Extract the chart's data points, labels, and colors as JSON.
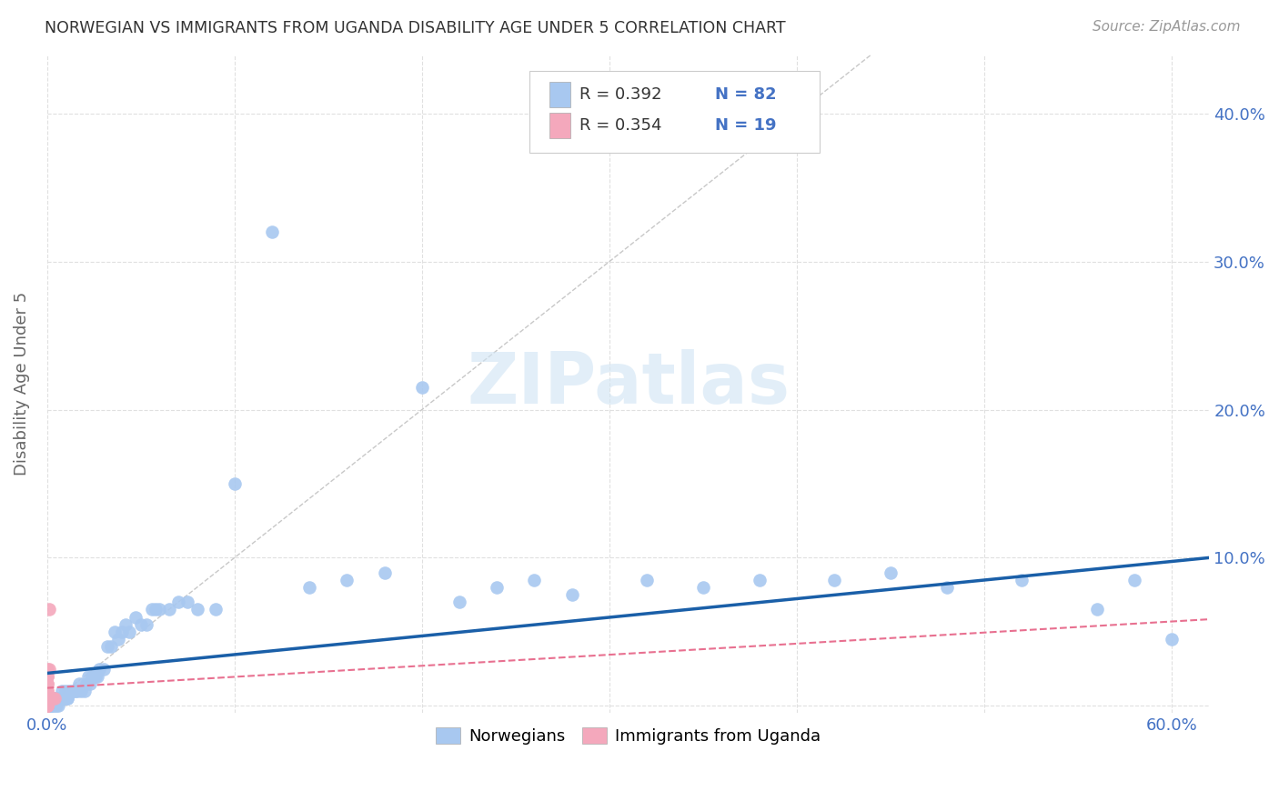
{
  "title": "NORWEGIAN VS IMMIGRANTS FROM UGANDA DISABILITY AGE UNDER 5 CORRELATION CHART",
  "source": "Source: ZipAtlas.com",
  "ylabel": "Disability Age Under 5",
  "xlim": [
    0.0,
    0.62
  ],
  "ylim": [
    -0.005,
    0.44
  ],
  "x_ticks": [
    0.0,
    0.1,
    0.2,
    0.3,
    0.4,
    0.5,
    0.6
  ],
  "x_tick_labels": [
    "0.0%",
    "",
    "",
    "",
    "",
    "",
    "60.0%"
  ],
  "y_ticks": [
    0.0,
    0.1,
    0.2,
    0.3,
    0.4
  ],
  "y_tick_labels": [
    "",
    "10.0%",
    "20.0%",
    "30.0%",
    "40.0%"
  ],
  "watermark": "ZIPatlas",
  "scatter_color_norwegian": "#a8c8f0",
  "scatter_color_uganda": "#f4a8bc",
  "regression_color_norwegian": "#1a5fa8",
  "regression_color_uganda": "#e87090",
  "diagonal_color": "#c8c8c8",
  "background_color": "#ffffff",
  "grid_color": "#e0e0e0",
  "title_color": "#333333",
  "axis_label_color": "#4472c4",
  "norwegian_x": [
    0.0,
    0.001,
    0.001,
    0.001,
    0.002,
    0.002,
    0.002,
    0.003,
    0.003,
    0.003,
    0.004,
    0.004,
    0.005,
    0.005,
    0.006,
    0.006,
    0.006,
    0.007,
    0.007,
    0.008,
    0.008,
    0.009,
    0.009,
    0.01,
    0.01,
    0.011,
    0.011,
    0.012,
    0.013,
    0.014,
    0.015,
    0.016,
    0.017,
    0.018,
    0.02,
    0.021,
    0.022,
    0.023,
    0.024,
    0.025,
    0.026,
    0.027,
    0.028,
    0.03,
    0.032,
    0.034,
    0.036,
    0.038,
    0.04,
    0.042,
    0.044,
    0.047,
    0.05,
    0.053,
    0.056,
    0.058,
    0.06,
    0.065,
    0.07,
    0.075,
    0.08,
    0.09,
    0.1,
    0.12,
    0.14,
    0.16,
    0.18,
    0.2,
    0.22,
    0.24,
    0.26,
    0.28,
    0.32,
    0.35,
    0.38,
    0.42,
    0.45,
    0.48,
    0.52,
    0.56,
    0.58,
    0.6
  ],
  "norwegian_y": [
    0.0,
    0.0,
    0.0,
    0.005,
    0.0,
    0.0,
    0.005,
    0.0,
    0.005,
    0.005,
    0.0,
    0.005,
    0.0,
    0.005,
    0.005,
    0.0,
    0.005,
    0.005,
    0.005,
    0.005,
    0.01,
    0.005,
    0.005,
    0.005,
    0.01,
    0.005,
    0.005,
    0.01,
    0.01,
    0.01,
    0.01,
    0.01,
    0.015,
    0.01,
    0.01,
    0.015,
    0.02,
    0.015,
    0.02,
    0.02,
    0.02,
    0.02,
    0.025,
    0.025,
    0.04,
    0.04,
    0.05,
    0.045,
    0.05,
    0.055,
    0.05,
    0.06,
    0.055,
    0.055,
    0.065,
    0.065,
    0.065,
    0.065,
    0.07,
    0.07,
    0.065,
    0.065,
    0.15,
    0.32,
    0.08,
    0.085,
    0.09,
    0.215,
    0.07,
    0.08,
    0.085,
    0.075,
    0.085,
    0.08,
    0.085,
    0.085,
    0.09,
    0.08,
    0.085,
    0.065,
    0.085,
    0.045
  ],
  "uganda_x": [
    0.0,
    0.0,
    0.0,
    0.0,
    0.0,
    0.0,
    0.0,
    0.0,
    0.0,
    0.0,
    0.0,
    0.0,
    0.0,
    0.0,
    0.001,
    0.001,
    0.002,
    0.003,
    0.004
  ],
  "uganda_y": [
    0.0,
    0.0,
    0.0,
    0.0,
    0.0,
    0.005,
    0.005,
    0.01,
    0.01,
    0.015,
    0.015,
    0.02,
    0.02,
    0.025,
    0.025,
    0.065,
    0.005,
    0.005,
    0.005
  ]
}
